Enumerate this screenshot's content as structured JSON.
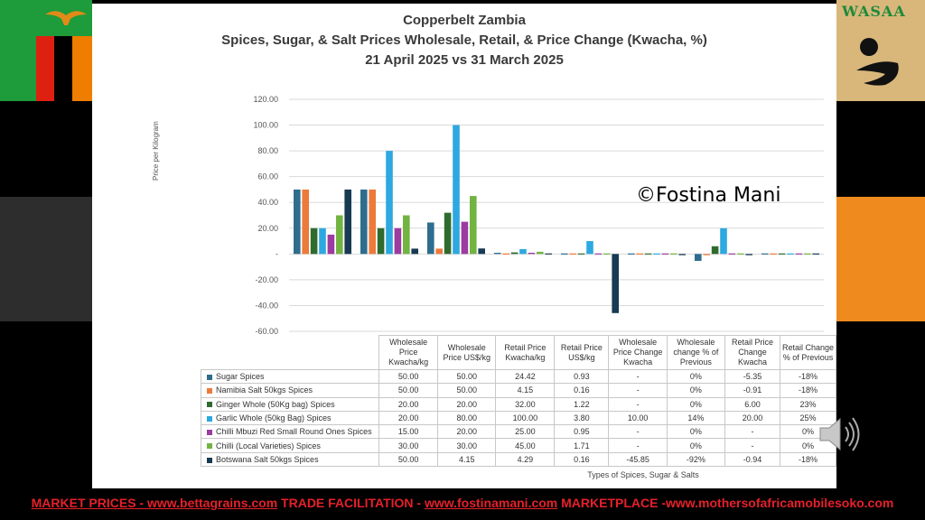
{
  "title_lines": [
    "Copperbelt Zambia",
    "Spices, Sugar, & Salt Prices Wholesale, Retail, & Price Change (Kwacha, %)",
    "21 April 2025 vs 31 March 2025"
  ],
  "watermark": "©Fostina Mani",
  "logo_text": "WASAA",
  "colors": {
    "bg": "#000000",
    "panel": "#ffffff",
    "flag_green": "#1e9b3a",
    "flag_red": "#de2010",
    "flag_orange": "#ef7d00",
    "footer": "#e5202a",
    "wasaa_bg": "#d9b77b"
  },
  "chart_data": {
    "type": "bar",
    "ylabel": "Price per Kilogram",
    "xlabel": "Types of Spices, Sugar & Salts",
    "ylim": [
      -60,
      120
    ],
    "ytick_labels": [
      "120.00",
      "100.00",
      "80.00",
      "60.00",
      "40.00",
      "20.00",
      "-",
      "-20.00",
      "-40.00",
      "-60.00"
    ],
    "grid": true,
    "categories": [
      "Wholesale Price Kwacha/kg",
      "Wholesale Price US$/kg",
      "Retail Price Kwacha/kg",
      "Retail Price US$/kg",
      "Wholesale Price Change Kwacha",
      "Wholesale change % of Previous",
      "Retail Price Change Kwacha",
      "Retail Change % of Previous"
    ],
    "series": [
      {
        "name": "Sugar Spices",
        "color": "#2e6d8e",
        "values": [
          50,
          50,
          24.42,
          0.93,
          0,
          0,
          -5.35,
          -0.18
        ],
        "labels": [
          "50.00",
          "50.00",
          "24.42",
          "0.93",
          "-",
          "0%",
          "-5.35",
          "-18%"
        ]
      },
      {
        "name": "Namibia  Salt 50kgs Spices",
        "color": "#ec7a3a",
        "values": [
          50,
          50,
          4.15,
          0.16,
          0,
          0,
          -0.91,
          -0.18
        ],
        "labels": [
          "50.00",
          "50.00",
          "4.15",
          "0.16",
          "-",
          "0%",
          "-0.91",
          "-18%"
        ]
      },
      {
        "name": "Ginger Whole (50Kg bag) Spices",
        "color": "#2f6b2f",
        "values": [
          20,
          20,
          32,
          1.22,
          0,
          0,
          6,
          0.23
        ],
        "labels": [
          "20.00",
          "20.00",
          "32.00",
          "1.22",
          "-",
          "0%",
          "6.00",
          "23%"
        ]
      },
      {
        "name": "Garlic Whole (50kg Bag) Spices",
        "color": "#2ea8e0",
        "values": [
          20,
          80,
          100,
          3.8,
          10,
          0.14,
          20,
          0.25
        ],
        "labels": [
          "20.00",
          "80.00",
          "100.00",
          "3.80",
          "10.00",
          "14%",
          "20.00",
          "25%"
        ]
      },
      {
        "name": "Chilli Mbuzi Red Small Round Ones Spices",
        "color": "#9c3ba0",
        "values": [
          15,
          20,
          25,
          0.95,
          0,
          0,
          0,
          0
        ],
        "labels": [
          "15.00",
          "20.00",
          "25.00",
          "0.95",
          "-",
          "0%",
          "-",
          "0%"
        ]
      },
      {
        "name": "Chilli (Local Varieties) Spices",
        "color": "#72b342",
        "values": [
          30,
          30,
          45,
          1.71,
          0,
          0,
          0,
          0
        ],
        "labels": [
          "30.00",
          "30.00",
          "45.00",
          "1.71",
          "-",
          "0%",
          "-",
          "0%"
        ]
      },
      {
        "name": "Botswana Salt 50kgs Spices",
        "color": "#183a52",
        "values": [
          50,
          4.15,
          4.29,
          0.16,
          -45.85,
          -0.92,
          -0.94,
          -0.18
        ],
        "labels": [
          "50.00",
          "4.15",
          "4.29",
          "0.16",
          "-45.85",
          "-92%",
          "-0.94",
          "-18%"
        ]
      }
    ]
  },
  "table_headers": [
    "Wholesale\nPrice\nKwacha/kg",
    "Wholesale\nPrice US$/kg",
    "Retail Price\nKwacha/kg",
    "Retail Price\nUS$/kg",
    "Wholesale\nPrice Change\nKwacha",
    "Wholesale\nchange  % of\nPrevious",
    "Retail Price\nChange\nKwacha",
    "Retail Change\n% of Previous"
  ],
  "footer": {
    "market_label": "MARKET PRICES - www.bettagrains.com",
    "trade_label": " TRADE FACILITATION - ",
    "trade_link": "www.fostinamani.com",
    "market_place": "  MARKETPLACE -www.mothersofafricamobilesoko.com"
  }
}
